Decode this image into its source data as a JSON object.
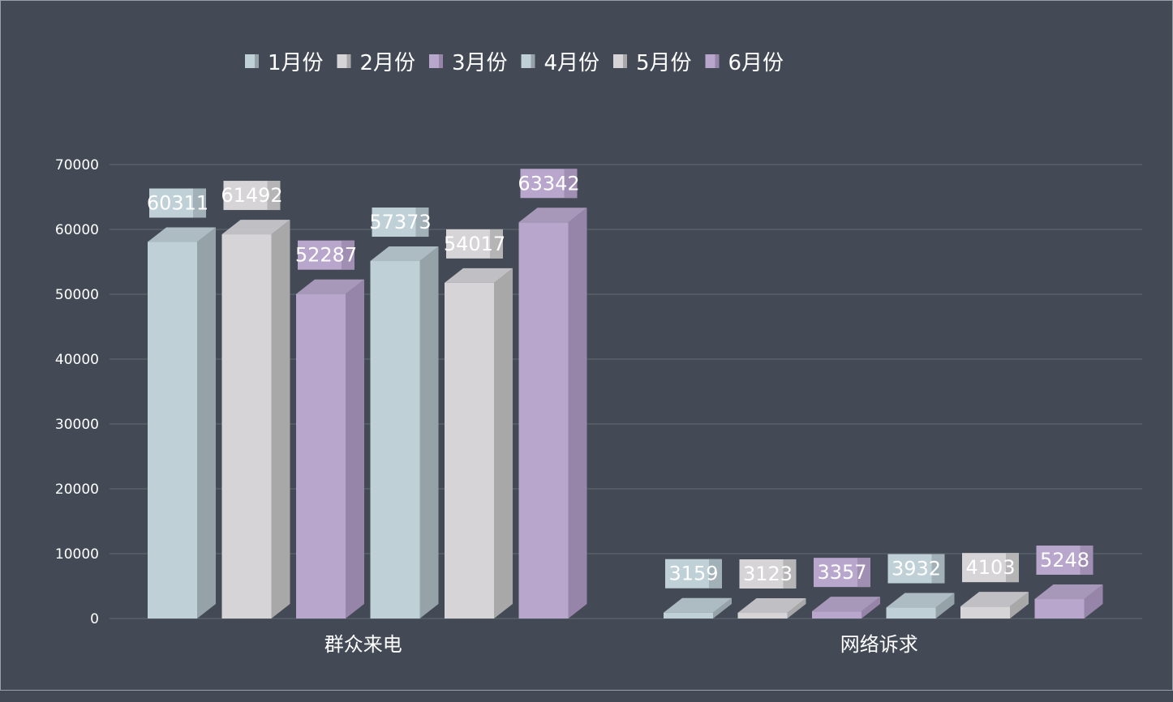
{
  "chart_data": {
    "type": "bar",
    "style": "3d-clustered-column",
    "title": "",
    "categories": [
      "群众来电",
      "网络诉求"
    ],
    "series": [
      {
        "name": "1月份",
        "values": [
          60311,
          3159
        ],
        "color": "#bfd0d7",
        "side": "#95a3a9"
      },
      {
        "name": "2月份",
        "values": [
          61492,
          3123
        ],
        "color": "#d6d4d7",
        "side": "#a8a8a8"
      },
      {
        "name": "3月份",
        "values": [
          52287,
          3357
        ],
        "color": "#b8a6cc",
        "side": "#9685a8"
      },
      {
        "name": "4月份",
        "values": [
          57373,
          3932
        ],
        "color": "#bfd0d7",
        "side": "#95a3a9"
      },
      {
        "name": "5月份",
        "values": [
          54017,
          4103
        ],
        "color": "#d6d4d7",
        "side": "#a8a8a8"
      },
      {
        "name": "6月份",
        "values": [
          63342,
          5248
        ],
        "color": "#b8a6cc",
        "side": "#9685a8"
      }
    ],
    "yticks": [
      0,
      10000,
      20000,
      30000,
      40000,
      50000,
      60000,
      70000
    ],
    "ylim": [
      0,
      70000
    ],
    "grid": true,
    "legend": "top",
    "xlabel": "",
    "ylabel": ""
  }
}
